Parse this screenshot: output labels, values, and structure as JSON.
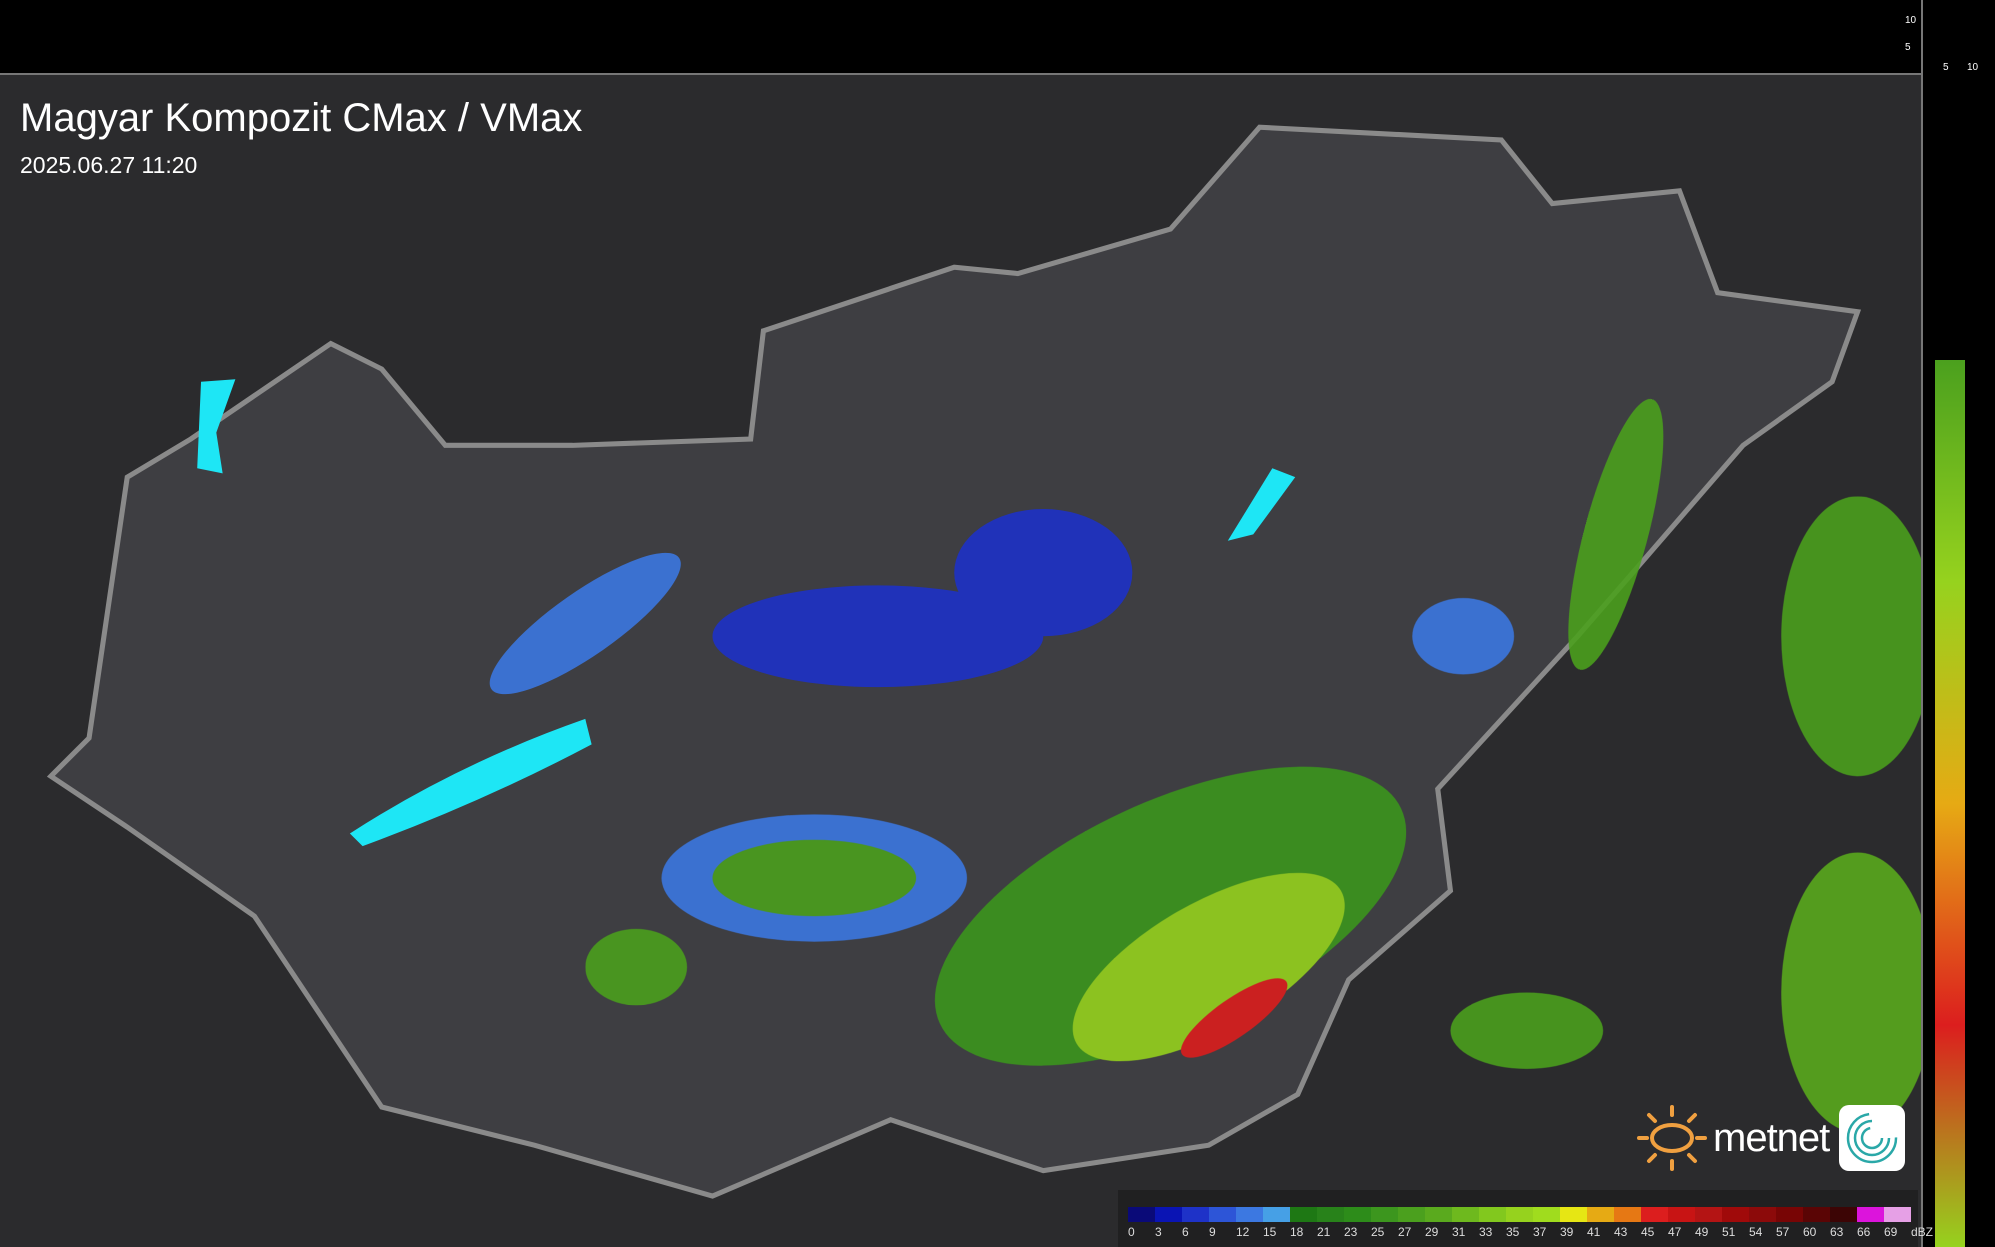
{
  "header": {
    "title": "Magyar Kompozit CMax / VMax",
    "timestamp": "2025.06.27 11:20"
  },
  "profile_scale": {
    "top_labels": [
      "10",
      "5"
    ],
    "right_labels": [
      "5",
      "10"
    ]
  },
  "legend": {
    "unit": "dBZ",
    "labels": [
      "0",
      "3",
      "6",
      "9",
      "12",
      "15",
      "18",
      "21",
      "23",
      "25",
      "27",
      "29",
      "31",
      "33",
      "35",
      "37",
      "39",
      "41",
      "43",
      "45",
      "47",
      "49",
      "51",
      "54",
      "57",
      "60",
      "63",
      "66",
      "69"
    ],
    "colors": [
      "#0a0a78",
      "#0a14b4",
      "#1e32c8",
      "#2d55d7",
      "#3c78e1",
      "#46a0e6",
      "#1e7814",
      "#28821a",
      "#2d8c1a",
      "#3c961e",
      "#4ba01e",
      "#5aaa1e",
      "#6eb91e",
      "#82c81e",
      "#96d21e",
      "#a0dc1e",
      "#e6e614",
      "#e6aa14",
      "#e67814",
      "#dc1e1e",
      "#c81414",
      "#b41414",
      "#a00a0a",
      "#8c0a0a",
      "#780505",
      "#5a0505",
      "#3c0505",
      "#dc14dc",
      "#e6a0e6",
      "#8cdce6"
    ]
  },
  "colors": {
    "background": "#2b2b2d",
    "country": "#3e3e42",
    "border": "#8a8a8a",
    "lakes": "#1ee6f5"
  },
  "logo": {
    "text": "metnet"
  }
}
